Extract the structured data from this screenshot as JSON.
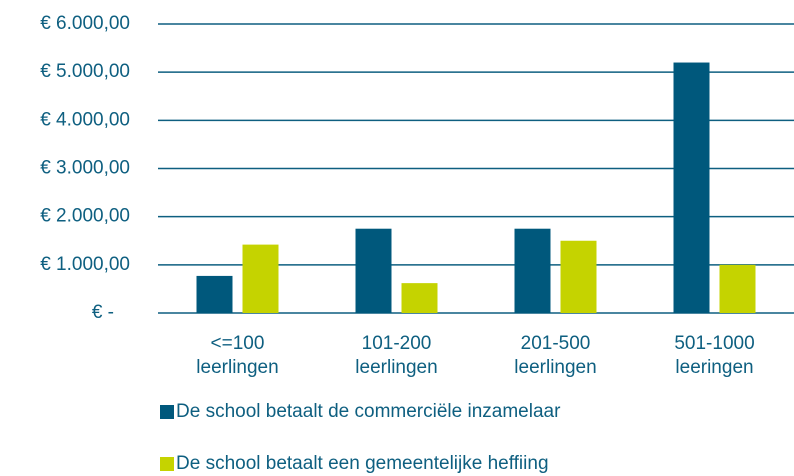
{
  "chart_data": {
    "type": "bar",
    "categories": [
      [
        "<=100",
        "leerlingen"
      ],
      [
        "101-200",
        "leerlingen"
      ],
      [
        "201-500",
        "leerlingen"
      ],
      [
        "501-1000",
        "leeringen"
      ]
    ],
    "series": [
      {
        "name": "De school betaalt de commerciële inzamelaar",
        "color": "#00587c",
        "values": [
          770,
          1750,
          1750,
          5200
        ]
      },
      {
        "name": "De school betaalt een gemeentelijke heffiing",
        "color": "#c5d300",
        "values": [
          1420,
          620,
          1500,
          1000
        ]
      }
    ],
    "ylim": [
      0,
      6000
    ],
    "yticks": [
      {
        "value": 0,
        "label": "€ -"
      },
      {
        "value": 1000,
        "label": "€ 1.000,00"
      },
      {
        "value": 2000,
        "label": "€ 2.000,00"
      },
      {
        "value": 3000,
        "label": "€ 3.000,00"
      },
      {
        "value": 4000,
        "label": "€ 4.000,00"
      },
      {
        "value": 5000,
        "label": "€ 5.000,00"
      },
      {
        "value": 6000,
        "label": "€ 6.000,00"
      }
    ],
    "grid": true,
    "legend": "bottom"
  }
}
